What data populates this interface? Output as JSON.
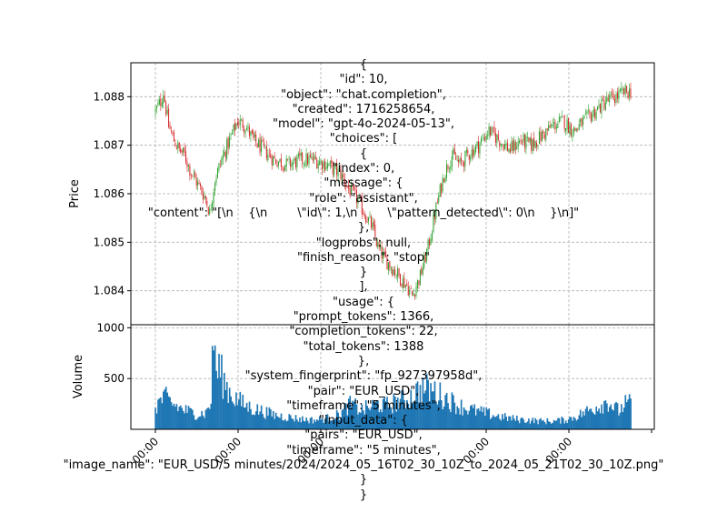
{
  "chart_data": [
    {
      "type": "candlestick",
      "ylabel": "Price",
      "ylim": [
        1.0833,
        1.0887
      ],
      "yticks": [
        "1.084",
        "1.085",
        "1.086",
        "1.087",
        "1.088"
      ],
      "grid": true,
      "up_color": "#2ca02c",
      "down_color": "#d62728",
      "close_anchors": [
        [
          0,
          1.0877
        ],
        [
          4,
          1.0879
        ],
        [
          6,
          1.0881
        ],
        [
          10,
          1.0874
        ],
        [
          14,
          1.0871
        ],
        [
          18,
          1.0869
        ],
        [
          22,
          1.0868
        ],
        [
          26,
          1.0865
        ],
        [
          30,
          1.0863
        ],
        [
          34,
          1.0861
        ],
        [
          38,
          1.0859
        ],
        [
          41,
          1.0856
        ],
        [
          45,
          1.0863
        ],
        [
          50,
          1.0867
        ],
        [
          56,
          1.0871
        ],
        [
          62,
          1.0875
        ],
        [
          68,
          1.0874
        ],
        [
          74,
          1.0871
        ],
        [
          82,
          1.0869
        ],
        [
          90,
          1.0867
        ],
        [
          100,
          1.0866
        ],
        [
          110,
          1.0867
        ],
        [
          120,
          1.0867
        ],
        [
          130,
          1.0866
        ],
        [
          140,
          1.0864
        ],
        [
          146,
          1.0861
        ],
        [
          152,
          1.0859
        ],
        [
          158,
          1.0856
        ],
        [
          164,
          1.0853
        ],
        [
          168,
          1.0849
        ],
        [
          172,
          1.0847
        ],
        [
          178,
          1.0845
        ],
        [
          184,
          1.0843
        ],
        [
          190,
          1.0841
        ],
        [
          194,
          1.0839
        ],
        [
          200,
          1.0843
        ],
        [
          206,
          1.0849
        ],
        [
          212,
          1.0857
        ],
        [
          218,
          1.0864
        ],
        [
          224,
          1.0868
        ],
        [
          230,
          1.0866
        ],
        [
          236,
          1.0868
        ],
        [
          244,
          1.087
        ],
        [
          252,
          1.0873
        ],
        [
          260,
          1.0871
        ],
        [
          268,
          1.0869
        ],
        [
          276,
          1.0871
        ],
        [
          284,
          1.087
        ],
        [
          292,
          1.0872
        ],
        [
          300,
          1.0874
        ],
        [
          308,
          1.0875
        ],
        [
          316,
          1.0873
        ],
        [
          324,
          1.0875
        ],
        [
          332,
          1.0877
        ],
        [
          340,
          1.0879
        ],
        [
          348,
          1.088
        ],
        [
          355,
          1.0881
        ]
      ]
    },
    {
      "type": "bar",
      "ylabel": "Volume",
      "ylim": [
        0,
        1030
      ],
      "yticks": [
        "500",
        "1000"
      ],
      "grid": true,
      "bar_color": "#1f77b4",
      "volume_anchors": [
        [
          0,
          220
        ],
        [
          4,
          290
        ],
        [
          8,
          300
        ],
        [
          14,
          240
        ],
        [
          20,
          200
        ],
        [
          26,
          170
        ],
        [
          32,
          150
        ],
        [
          38,
          160
        ],
        [
          42,
          280
        ],
        [
          44,
          950
        ],
        [
          46,
          560
        ],
        [
          48,
          600
        ],
        [
          52,
          460
        ],
        [
          56,
          370
        ],
        [
          60,
          310
        ],
        [
          66,
          250
        ],
        [
          72,
          210
        ],
        [
          80,
          180
        ],
        [
          90,
          140
        ],
        [
          100,
          120
        ],
        [
          110,
          100
        ],
        [
          120,
          90
        ],
        [
          130,
          110
        ],
        [
          140,
          150
        ],
        [
          146,
          240
        ],
        [
          150,
          230
        ],
        [
          156,
          190
        ],
        [
          162,
          220
        ],
        [
          168,
          250
        ],
        [
          174,
          230
        ],
        [
          180,
          260
        ],
        [
          186,
          280
        ],
        [
          192,
          310
        ],
        [
          196,
          360
        ],
        [
          200,
          390
        ],
        [
          204,
          400
        ],
        [
          210,
          380
        ],
        [
          216,
          330
        ],
        [
          222,
          290
        ],
        [
          228,
          240
        ],
        [
          234,
          210
        ],
        [
          242,
          180
        ],
        [
          252,
          150
        ],
        [
          262,
          120
        ],
        [
          272,
          100
        ],
        [
          282,
          90
        ],
        [
          292,
          80
        ],
        [
          302,
          80
        ],
        [
          312,
          100
        ],
        [
          320,
          140
        ],
        [
          328,
          190
        ],
        [
          336,
          240
        ],
        [
          342,
          280
        ],
        [
          346,
          220
        ],
        [
          350,
          180
        ],
        [
          355,
          250
        ]
      ],
      "xtick_labels": [
        "00:00",
        "00:00",
        "00:00",
        "00:00",
        "00:00"
      ]
    }
  ],
  "overlay_text": "{\n\"id\": 10,\n\"object\": \"chat.completion\",\n\"created\": 1716258654,\n\"model\": \"gpt-4o-2024-05-13\",\n\"choices\": [\n{\n\"index\": 0,\n\"message\": {\n\"role\": \"assistant\",\n\"content\": \"[\\n    {\\n        \\\"id\\\": 1,\\n        \\\"pattern_detected\\\": 0\\n    }\\n]\"\n},\n\"logprobs\": null,\n\"finish_reason\": \"stop\"\n}\n],\n\"usage\": {\n\"prompt_tokens\": 1366,\n\"completion_tokens\": 22,\n\"total_tokens\": 1388\n},\n\"system_fingerprint\": \"fp_927397958d\",\n\"pair\": \"EUR_USD\",\n\"timeframe\": \"5 minutes\",\n\"input_data\": {\n\"pairs\": \"EUR_USD\",\n\"timeframe\": \"5 minutes\",\n\"image_name\": \"EUR_USD/5 minutes/2024/2024_05_16T02_30_10Z_to_2024_05_21T02_30_10Z.png\"\n}\n}"
}
